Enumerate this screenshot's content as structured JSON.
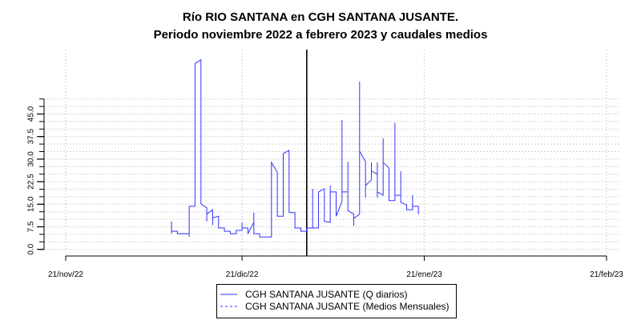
{
  "chart_data": {
    "type": "line",
    "title": [
      "Río RIO SANTANA en CGH SANTANA JUSANTE.",
      "Periodo noviembre 2022 a febrero 2023 y caudales medios"
    ],
    "xlabel": "",
    "ylabel": "",
    "x_unit": "days since 21/nov/22",
    "xlim": [
      0,
      92
    ],
    "ylim": [
      0,
      50
    ],
    "grid": true,
    "y_ticks_minor_step": 2.5,
    "y_tick_labels": [
      "0.0",
      "7.5",
      "15.0",
      "22.5",
      "30.0",
      "37.5",
      "45.0"
    ],
    "y_tick_values": [
      0,
      7.5,
      15,
      22.5,
      30,
      37.5,
      45
    ],
    "x_tick_labels": [
      "21/nov/22",
      "21/dic/22",
      "21/ene/23",
      "21/feb/23"
    ],
    "x_tick_values": [
      0,
      30,
      61,
      92
    ],
    "vertical_marker_day": 41,
    "legend_position": "bottom-center",
    "legend": [
      "CGH SANTANA JUSANTE (Q diarios)",
      "CGH SANTANA JUSANTE (Medios Mensuales)"
    ],
    "series": [
      {
        "name": "CGH SANTANA JUSANTE (Q diarios)",
        "color": "#3333ff",
        "points": [
          [
            18,
            9.3
          ],
          [
            18,
            5.2
          ],
          [
            18,
            6.0
          ],
          [
            19,
            6.0
          ],
          [
            19,
            5.2
          ],
          [
            21,
            5.2
          ],
          [
            21,
            4.1
          ],
          [
            21,
            14.3
          ],
          [
            22,
            14.3
          ],
          [
            22,
            61.8
          ],
          [
            23,
            63.0
          ],
          [
            23,
            15.1
          ],
          [
            24,
            13.8
          ],
          [
            24,
            9.3
          ],
          [
            24,
            11.7
          ],
          [
            25,
            13.2
          ],
          [
            25,
            8.1
          ],
          [
            25,
            10.5
          ],
          [
            26,
            11.0
          ],
          [
            26,
            7.1
          ],
          [
            27,
            7.1
          ],
          [
            27,
            6.0
          ],
          [
            28,
            6.0
          ],
          [
            28,
            5.2
          ],
          [
            29,
            5.2
          ],
          [
            29,
            6.3
          ],
          [
            30,
            6.3
          ],
          [
            30,
            9.0
          ],
          [
            30,
            7.1
          ],
          [
            31,
            7.1
          ],
          [
            31,
            5.2
          ],
          [
            32,
            9.0
          ],
          [
            32,
            12.2
          ],
          [
            32,
            5.2
          ],
          [
            33,
            5.2
          ],
          [
            33,
            4.1
          ],
          [
            35,
            4.1
          ],
          [
            35,
            28.9
          ],
          [
            36,
            25.7
          ],
          [
            36,
            11.0
          ],
          [
            37,
            11.0
          ],
          [
            37,
            31.8
          ],
          [
            38,
            32.9
          ],
          [
            38,
            12.2
          ],
          [
            39,
            12.2
          ],
          [
            39,
            7.1
          ],
          [
            40,
            7.1
          ],
          [
            40,
            6.0
          ],
          [
            41,
            6.0
          ],
          [
            41,
            7.1
          ],
          [
            42,
            7.1
          ],
          [
            42,
            20.1
          ],
          [
            42,
            7.1
          ],
          [
            43,
            7.1
          ],
          [
            43,
            19.1
          ],
          [
            44,
            20.1
          ],
          [
            44,
            9.3
          ],
          [
            45,
            9.0
          ],
          [
            45,
            21.2
          ],
          [
            45,
            19.1
          ],
          [
            46,
            19.1
          ],
          [
            46,
            11.0
          ],
          [
            47,
            15.9
          ],
          [
            47,
            43.0
          ],
          [
            47,
            19.1
          ],
          [
            48,
            19.1
          ],
          [
            48,
            29.1
          ],
          [
            48,
            12.9
          ],
          [
            49,
            11.7
          ],
          [
            49,
            7.9
          ],
          [
            49,
            10.3
          ],
          [
            50,
            11.7
          ],
          [
            50,
            55.8
          ],
          [
            50,
            32.7
          ],
          [
            51,
            29.1
          ],
          [
            51,
            17.2
          ],
          [
            51,
            21.2
          ],
          [
            52,
            23.1
          ],
          [
            52,
            28.9
          ],
          [
            52,
            26.0
          ],
          [
            53,
            25.0
          ],
          [
            53,
            28.9
          ],
          [
            53,
            17.2
          ],
          [
            53,
            19.1
          ],
          [
            54,
            18.0
          ],
          [
            54,
            36.9
          ],
          [
            54,
            28.9
          ],
          [
            55,
            27.0
          ],
          [
            55,
            16.2
          ],
          [
            56,
            16.2
          ],
          [
            56,
            42.0
          ],
          [
            56,
            18.0
          ],
          [
            57,
            18.0
          ],
          [
            57,
            26.0
          ],
          [
            57,
            15.6
          ],
          [
            58,
            14.8
          ],
          [
            58,
            13.2
          ],
          [
            59,
            13.2
          ],
          [
            59,
            18.0
          ],
          [
            59,
            14.3
          ],
          [
            60,
            14.3
          ],
          [
            60,
            11.7
          ]
        ]
      },
      {
        "name": "CGH SANTANA JUSANTE (Medios Mensuales)",
        "color": "#3333ff",
        "points": []
      }
    ]
  }
}
